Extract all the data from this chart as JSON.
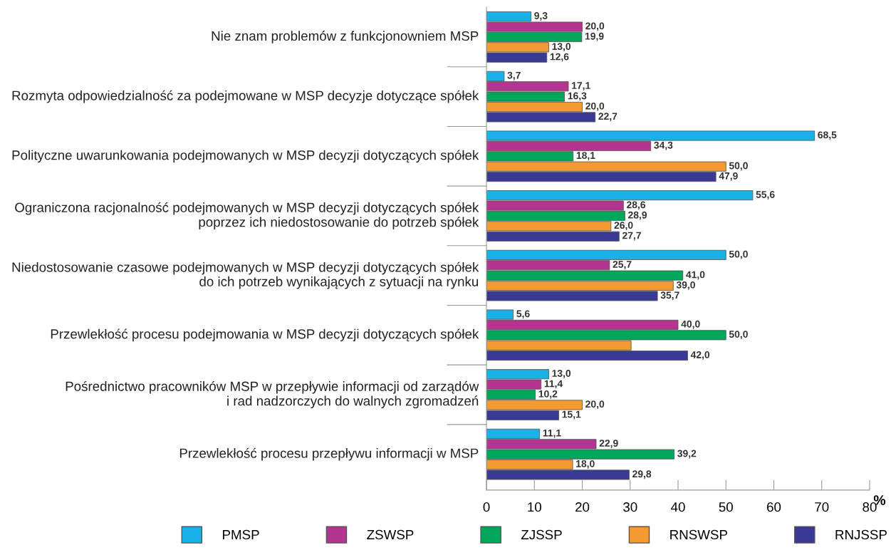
{
  "chart_data": {
    "type": "bar",
    "orientation": "horizontal",
    "xlabel": "%",
    "categories": [
      "Nie znam problemów z funkcjonowniem MSP",
      "Rozmyta odpowiedzialność za podejmowane w MSP decyzje dotyczące spółek",
      "Polityczne uwarunkowania podejmowanych w MSP decyzji dotyczących spółek",
      "Ograniczona racjonalność podejmowanych w MSP decyzji dotyczących spółek\npoprzez ich niedostosowanie do potrzeb spółek",
      "Niedostosowanie czasowe podejmowanych w MSP decyzji dotyczących spółek\ndo ich potrzeb wynikających z sytuacji na rynku",
      "Przewlekłość procesu podejmowania w MSP decyzji dotyczących spółek",
      "Pośrednictwo pracowników MSP w przepływie informacji od zarządów\ni rad nadzorczych do walnych zgromadzeń",
      "Przewlekłość procesu przepływu informacji w MSP"
    ],
    "series": [
      {
        "name": "PMSP",
        "color": "#1ab0e8",
        "values": [
          9.3,
          3.7,
          68.5,
          55.6,
          50.0,
          5.6,
          13.0,
          11.1
        ],
        "value_labels": [
          "9,3",
          "3,7",
          "68,5",
          "55,6",
          "50,0",
          "5,6",
          "13,0",
          "11,1"
        ]
      },
      {
        "name": "ZSWSP",
        "color": "#b4358f",
        "values": [
          20.0,
          17.1,
          34.3,
          28.6,
          25.7,
          40.0,
          11.4,
          22.9
        ],
        "value_labels": [
          "20,0",
          "17,1",
          "34,3",
          "28,6",
          "25,7",
          "40,0",
          "11,4",
          "22,9"
        ]
      },
      {
        "name": "ZJSSP",
        "color": "#00a65a",
        "values": [
          19.9,
          16.3,
          18.1,
          28.9,
          41.0,
          50.0,
          10.2,
          39.2
        ],
        "value_labels": [
          "19,9",
          "16,3",
          "18,1",
          "28,9",
          "41,0",
          "50,0",
          "10,2",
          "39,2"
        ]
      },
      {
        "name": "RNSWSP",
        "color": "#f39a30",
        "values": [
          13.0,
          20.0,
          50.0,
          26.0,
          39.0,
          30.2,
          20.0,
          18.0
        ],
        "value_labels": [
          "13,0",
          "20,0",
          "50,0",
          "26,0",
          "39,0",
          null,
          "20,0",
          "18,0"
        ]
      },
      {
        "name": "RNJSSP",
        "color": "#3a3a94",
        "values": [
          12.6,
          22.7,
          47.9,
          27.7,
          35.7,
          42.0,
          15.1,
          29.8
        ],
        "value_labels": [
          "12,6",
          "22,7",
          "47,9",
          "27,7",
          "35,7",
          "42,0",
          "15,1",
          "29,8"
        ]
      }
    ],
    "xlim": [
      0,
      80
    ],
    "xticks": [
      0,
      10,
      20,
      30,
      40,
      50,
      60,
      70,
      80
    ],
    "grid": false,
    "legend": "bottom"
  }
}
